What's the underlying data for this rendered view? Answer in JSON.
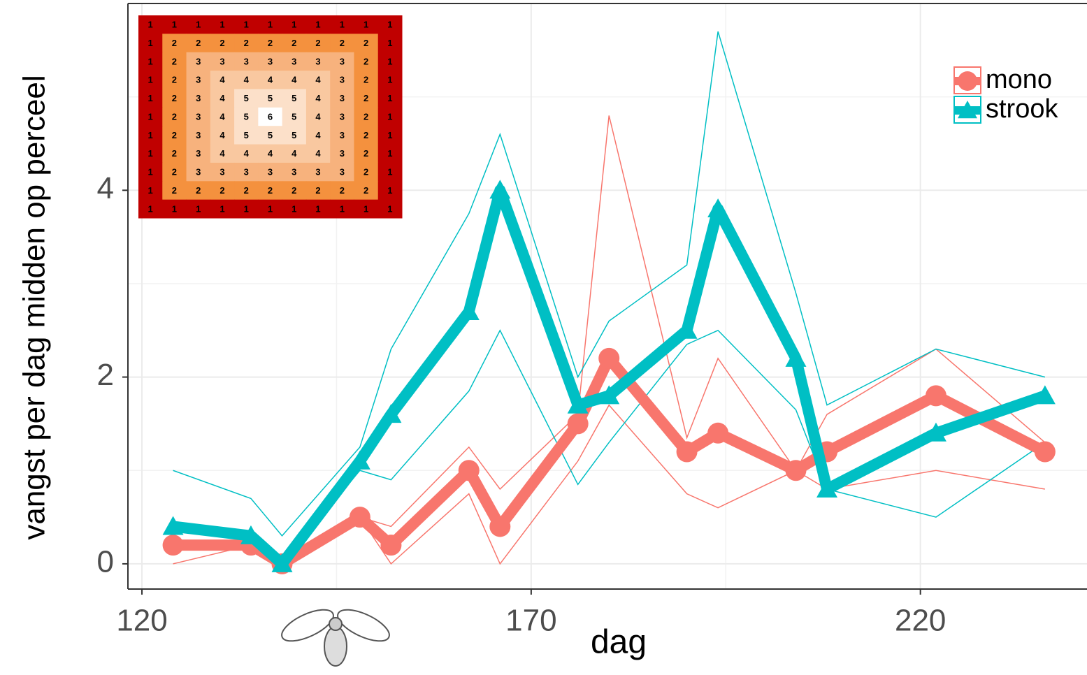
{
  "chart_data": {
    "type": "line",
    "x_label": "dag",
    "y_label": "vangst  per dag midden op perceel",
    "x": [
      124,
      134,
      138,
      148,
      152,
      162,
      166,
      176,
      180,
      190,
      194,
      204,
      208,
      222,
      236
    ],
    "series": [
      {
        "name": "mono",
        "color": "#f8766d",
        "marker": "circle",
        "values": [
          0.2,
          0.2,
          0.0,
          0.5,
          0.2,
          1.0,
          0.4,
          1.5,
          2.2,
          1.2,
          1.4,
          1.0,
          1.2,
          1.8,
          1.2
        ],
        "upper": [
          0.2,
          0.2,
          0.0,
          0.5,
          0.4,
          1.25,
          0.8,
          1.6,
          4.8,
          1.35,
          2.2,
          1.0,
          1.6,
          2.3,
          1.3
        ],
        "lower": [
          0.0,
          0.2,
          0.0,
          0.5,
          0.0,
          0.75,
          0.0,
          1.1,
          1.7,
          0.75,
          0.6,
          1.0,
          0.8,
          1.0,
          0.8
        ]
      },
      {
        "name": "strook",
        "color": "#00bfc4",
        "marker": "triangle",
        "values": [
          0.4,
          0.3,
          0.0,
          1.1,
          1.6,
          2.7,
          4.0,
          1.7,
          1.8,
          2.5,
          3.8,
          2.2,
          0.8,
          1.4,
          1.8
        ],
        "upper": [
          1.0,
          0.7,
          0.3,
          1.25,
          2.3,
          3.75,
          4.6,
          2.0,
          2.6,
          3.2,
          5.7,
          2.9,
          1.7,
          2.3,
          2.0
        ],
        "lower": [
          0.4,
          0.3,
          0.0,
          1.0,
          0.9,
          1.85,
          2.5,
          0.85,
          1.3,
          2.35,
          2.5,
          1.65,
          0.8,
          0.5,
          1.3
        ]
      }
    ],
    "xlim": [
      118.2,
      241.4
    ],
    "ylim": [
      -0.27,
      6.0
    ],
    "xticks": [
      120,
      170,
      220
    ],
    "xminorticks": [
      145,
      195
    ],
    "yticks": [
      0,
      2,
      4
    ],
    "yminorticks": [
      1,
      3,
      5
    ],
    "grid": true,
    "legend": "top-right"
  },
  "inset": {
    "rows": [
      [
        1,
        1,
        1,
        1,
        1,
        1,
        1,
        1,
        1,
        1,
        1
      ],
      [
        1,
        2,
        2,
        2,
        2,
        2,
        2,
        2,
        2,
        2,
        1
      ],
      [
        1,
        2,
        3,
        3,
        3,
        3,
        3,
        3,
        3,
        2,
        1
      ],
      [
        1,
        2,
        3,
        4,
        4,
        4,
        4,
        4,
        3,
        2,
        1
      ],
      [
        1,
        2,
        3,
        4,
        5,
        5,
        5,
        4,
        3,
        2,
        1
      ],
      [
        1,
        2,
        3,
        4,
        5,
        6,
        5,
        4,
        3,
        2,
        1
      ],
      [
        1,
        2,
        3,
        4,
        5,
        5,
        5,
        4,
        3,
        2,
        1
      ],
      [
        1,
        2,
        3,
        4,
        4,
        4,
        4,
        4,
        3,
        2,
        1
      ],
      [
        1,
        2,
        3,
        3,
        3,
        3,
        3,
        3,
        3,
        2,
        1
      ],
      [
        1,
        2,
        2,
        2,
        2,
        2,
        2,
        2,
        2,
        2,
        1
      ],
      [
        1,
        1,
        1,
        1,
        1,
        1,
        1,
        1,
        1,
        1,
        1
      ]
    ]
  }
}
